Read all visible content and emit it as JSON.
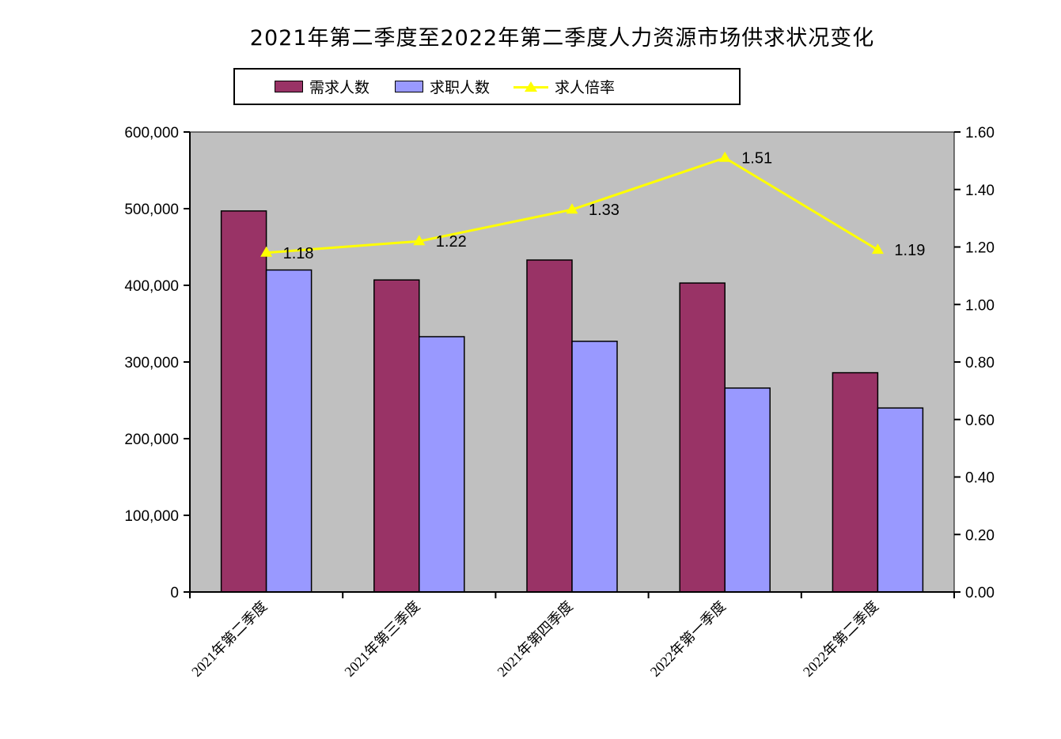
{
  "title": "2021年第二季度至2022年第二季度人力资源市场供求状况变化",
  "legend": {
    "items": [
      {
        "label": "需求人数",
        "color": "#993366",
        "type": "bar"
      },
      {
        "label": "求职人数",
        "color": "#9999FF",
        "type": "bar"
      },
      {
        "label": "求人倍率",
        "color": "#FFFF00",
        "type": "line"
      }
    ]
  },
  "chart_data": {
    "type": "bar",
    "subtype": "bar+line-combo",
    "title": "2021年第二季度至2022年第二季度人力资源市场供求状况变化",
    "categories": [
      "2021年第二季度",
      "2021年第三季度",
      "2021年第四季度",
      "2022年第一季度",
      "2022年第二季度"
    ],
    "series": [
      {
        "name": "需求人数",
        "type": "bar",
        "axis": "left",
        "color": "#993366",
        "values": [
          497000,
          407000,
          433000,
          403000,
          286000
        ]
      },
      {
        "name": "求职人数",
        "type": "bar",
        "axis": "left",
        "color": "#9999FF",
        "values": [
          420000,
          333000,
          327000,
          266000,
          240000
        ]
      },
      {
        "name": "求人倍率",
        "type": "line",
        "axis": "right",
        "color": "#FFFF00",
        "marker": "triangle",
        "values": [
          1.18,
          1.22,
          1.33,
          1.51,
          1.19
        ],
        "point_labels": [
          "1.18",
          "1.22",
          "1.33",
          "1.51",
          "1.19"
        ]
      }
    ],
    "left_axis": {
      "min": 0,
      "max": 600000,
      "step": 100000,
      "tick_labels": [
        "600,000",
        "500,000",
        "400,000",
        "300,000",
        "200,000",
        "100,000",
        "0"
      ]
    },
    "right_axis": {
      "min": 0.0,
      "max": 1.6,
      "step": 0.2,
      "tick_labels": [
        "1.60",
        "1.40",
        "1.20",
        "1.00",
        "0.80",
        "0.60",
        "0.40",
        "0.20",
        "0.00"
      ]
    },
    "plot_background": "#C0C0C0",
    "page_background": "#FFFFFF",
    "grid": false,
    "legend_position": "top",
    "bar_border_color": "#000000",
    "label_color": "#000000"
  }
}
